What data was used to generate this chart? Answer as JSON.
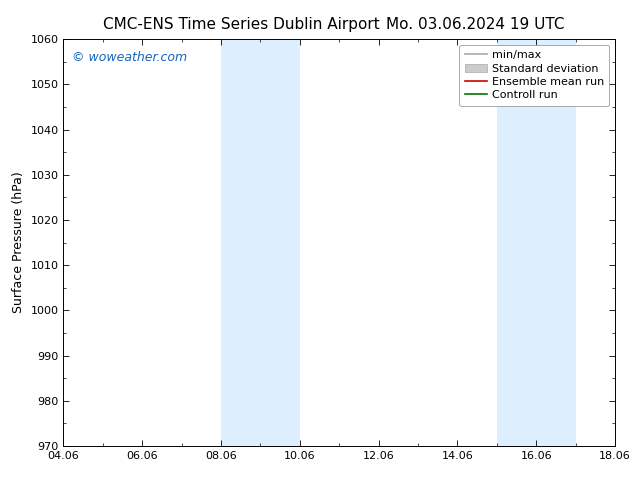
{
  "title_left": "CMC-ENS Time Series Dublin Airport",
  "title_right": "Mo. 03.06.2024 19 UTC",
  "ylabel": "Surface Pressure (hPa)",
  "ylim": [
    970,
    1060
  ],
  "yticks": [
    970,
    980,
    990,
    1000,
    1010,
    1020,
    1030,
    1040,
    1050,
    1060
  ],
  "xtick_positions": [
    4,
    6,
    8,
    10,
    12,
    14,
    16,
    18
  ],
  "xtick_labels": [
    "04.06",
    "06.06",
    "08.06",
    "10.06",
    "12.06",
    "14.06",
    "16.06",
    "18.06"
  ],
  "xlim": [
    4,
    18
  ],
  "shaded_bands": [
    {
      "xstart": 8.0,
      "xend": 9.0
    },
    {
      "xstart": 9.0,
      "xend": 10.0
    },
    {
      "xstart": 15.0,
      "xend": 16.0
    },
    {
      "xstart": 16.0,
      "xend": 17.0
    }
  ],
  "shade_color": "#ddeeff",
  "watermark": "© woweather.com",
  "watermark_color": "#1565c0",
  "legend_entries": [
    {
      "label": "min/max",
      "color": "#aaaaaa",
      "type": "line",
      "linewidth": 1.2
    },
    {
      "label": "Standard deviation",
      "color": "#cccccc",
      "type": "patch"
    },
    {
      "label": "Ensemble mean run",
      "color": "#cc0000",
      "type": "line",
      "linewidth": 1.2
    },
    {
      "label": "Controll run",
      "color": "#007700",
      "type": "line",
      "linewidth": 1.2
    }
  ],
  "background_color": "#ffffff",
  "spine_color": "#000000",
  "tick_color": "#000000",
  "font_size_title": 11,
  "font_size_axis_label": 9,
  "font_size_ticks": 8,
  "font_size_watermark": 9,
  "font_size_legend": 8
}
